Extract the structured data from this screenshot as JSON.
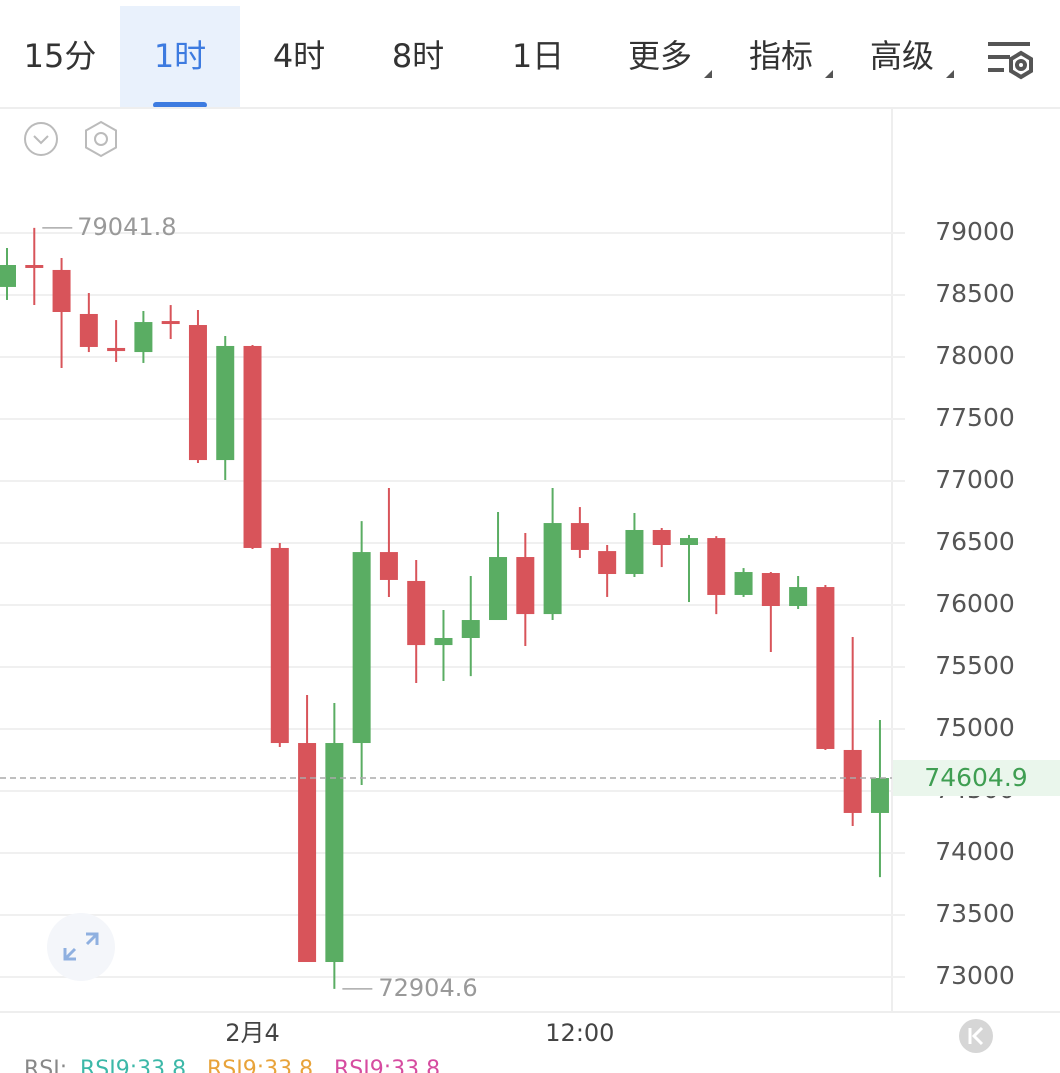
{
  "toolbar": {
    "tabs": [
      "15分",
      "1时",
      "4时",
      "8时",
      "1日",
      "更多",
      "指标",
      "高级"
    ],
    "selected": 1
  },
  "chart_data": {
    "type": "candlestick",
    "categories": [
      null,
      null,
      null,
      null,
      null,
      null,
      null,
      null,
      null,
      "2月4",
      null,
      null,
      null,
      null,
      null,
      null,
      null,
      null,
      null,
      null,
      null,
      "12:00",
      null,
      null,
      null,
      null,
      null,
      null,
      null,
      null,
      null,
      null,
      null
    ],
    "open": [
      78565,
      78742,
      78702,
      78347,
      78073,
      78040,
      78290,
      78258,
      77169,
      78089,
      76460,
      74887,
      73121,
      74887,
      76427,
      76194,
      75677,
      75734,
      75879,
      76387,
      75927,
      76661,
      76435,
      76250,
      76605,
      76484,
      76540,
      76081,
      76258,
      75992,
      76145,
      74831,
      74323
    ],
    "high": [
      78879,
      79041.8,
      78798,
      78516,
      78298,
      78371,
      78419,
      78379,
      78169,
      78097,
      76500,
      75274,
      75210,
      76677,
      76944,
      76363,
      75960,
      76234,
      76750,
      76581,
      76944,
      76790,
      76484,
      76742,
      76621,
      76565,
      76556,
      76298,
      76266,
      76234,
      76161,
      75742,
      75073
    ],
    "low": [
      78460,
      78419,
      77911,
      78040,
      77960,
      77952,
      78145,
      77145,
      77008,
      76452,
      74855,
      73121,
      72904.6,
      74548,
      76065,
      75371,
      75387,
      75427,
      75879,
      75669,
      75879,
      76379,
      76065,
      76226,
      76306,
      76024,
      75927,
      76065,
      75621,
      75968,
      74831,
      74218,
      73806
    ],
    "close": [
      78742,
      78718,
      78363,
      78081,
      78048,
      78282,
      78266,
      77169,
      78089,
      76460,
      74887,
      73121,
      74887,
      76427,
      76202,
      75677,
      75734,
      75879,
      76387,
      75927,
      76661,
      76444,
      76250,
      76605,
      76484,
      76540,
      76081,
      76266,
      75992,
      76145,
      74839,
      74323,
      74604.9
    ],
    "up_color": "#5aad63",
    "down_color": "#d8545a",
    "ylim": [
      72734,
      79992
    ],
    "yticks": [
      73000,
      73500,
      74000,
      74500,
      75000,
      75500,
      76000,
      76500,
      77000,
      77500,
      78000,
      78500,
      79000
    ],
    "grid": true,
    "max_index": 1,
    "min_index": 12
  },
  "indicator": {
    "label": "RSI:",
    "items": [
      {
        "text": "RSI9:33.8",
        "color": "#3cb8a8"
      },
      {
        "text": "RSI9:33.8",
        "color": "#e8a33a"
      },
      {
        "text": "RSI9:33.8",
        "color": "#d64ca0"
      }
    ]
  }
}
